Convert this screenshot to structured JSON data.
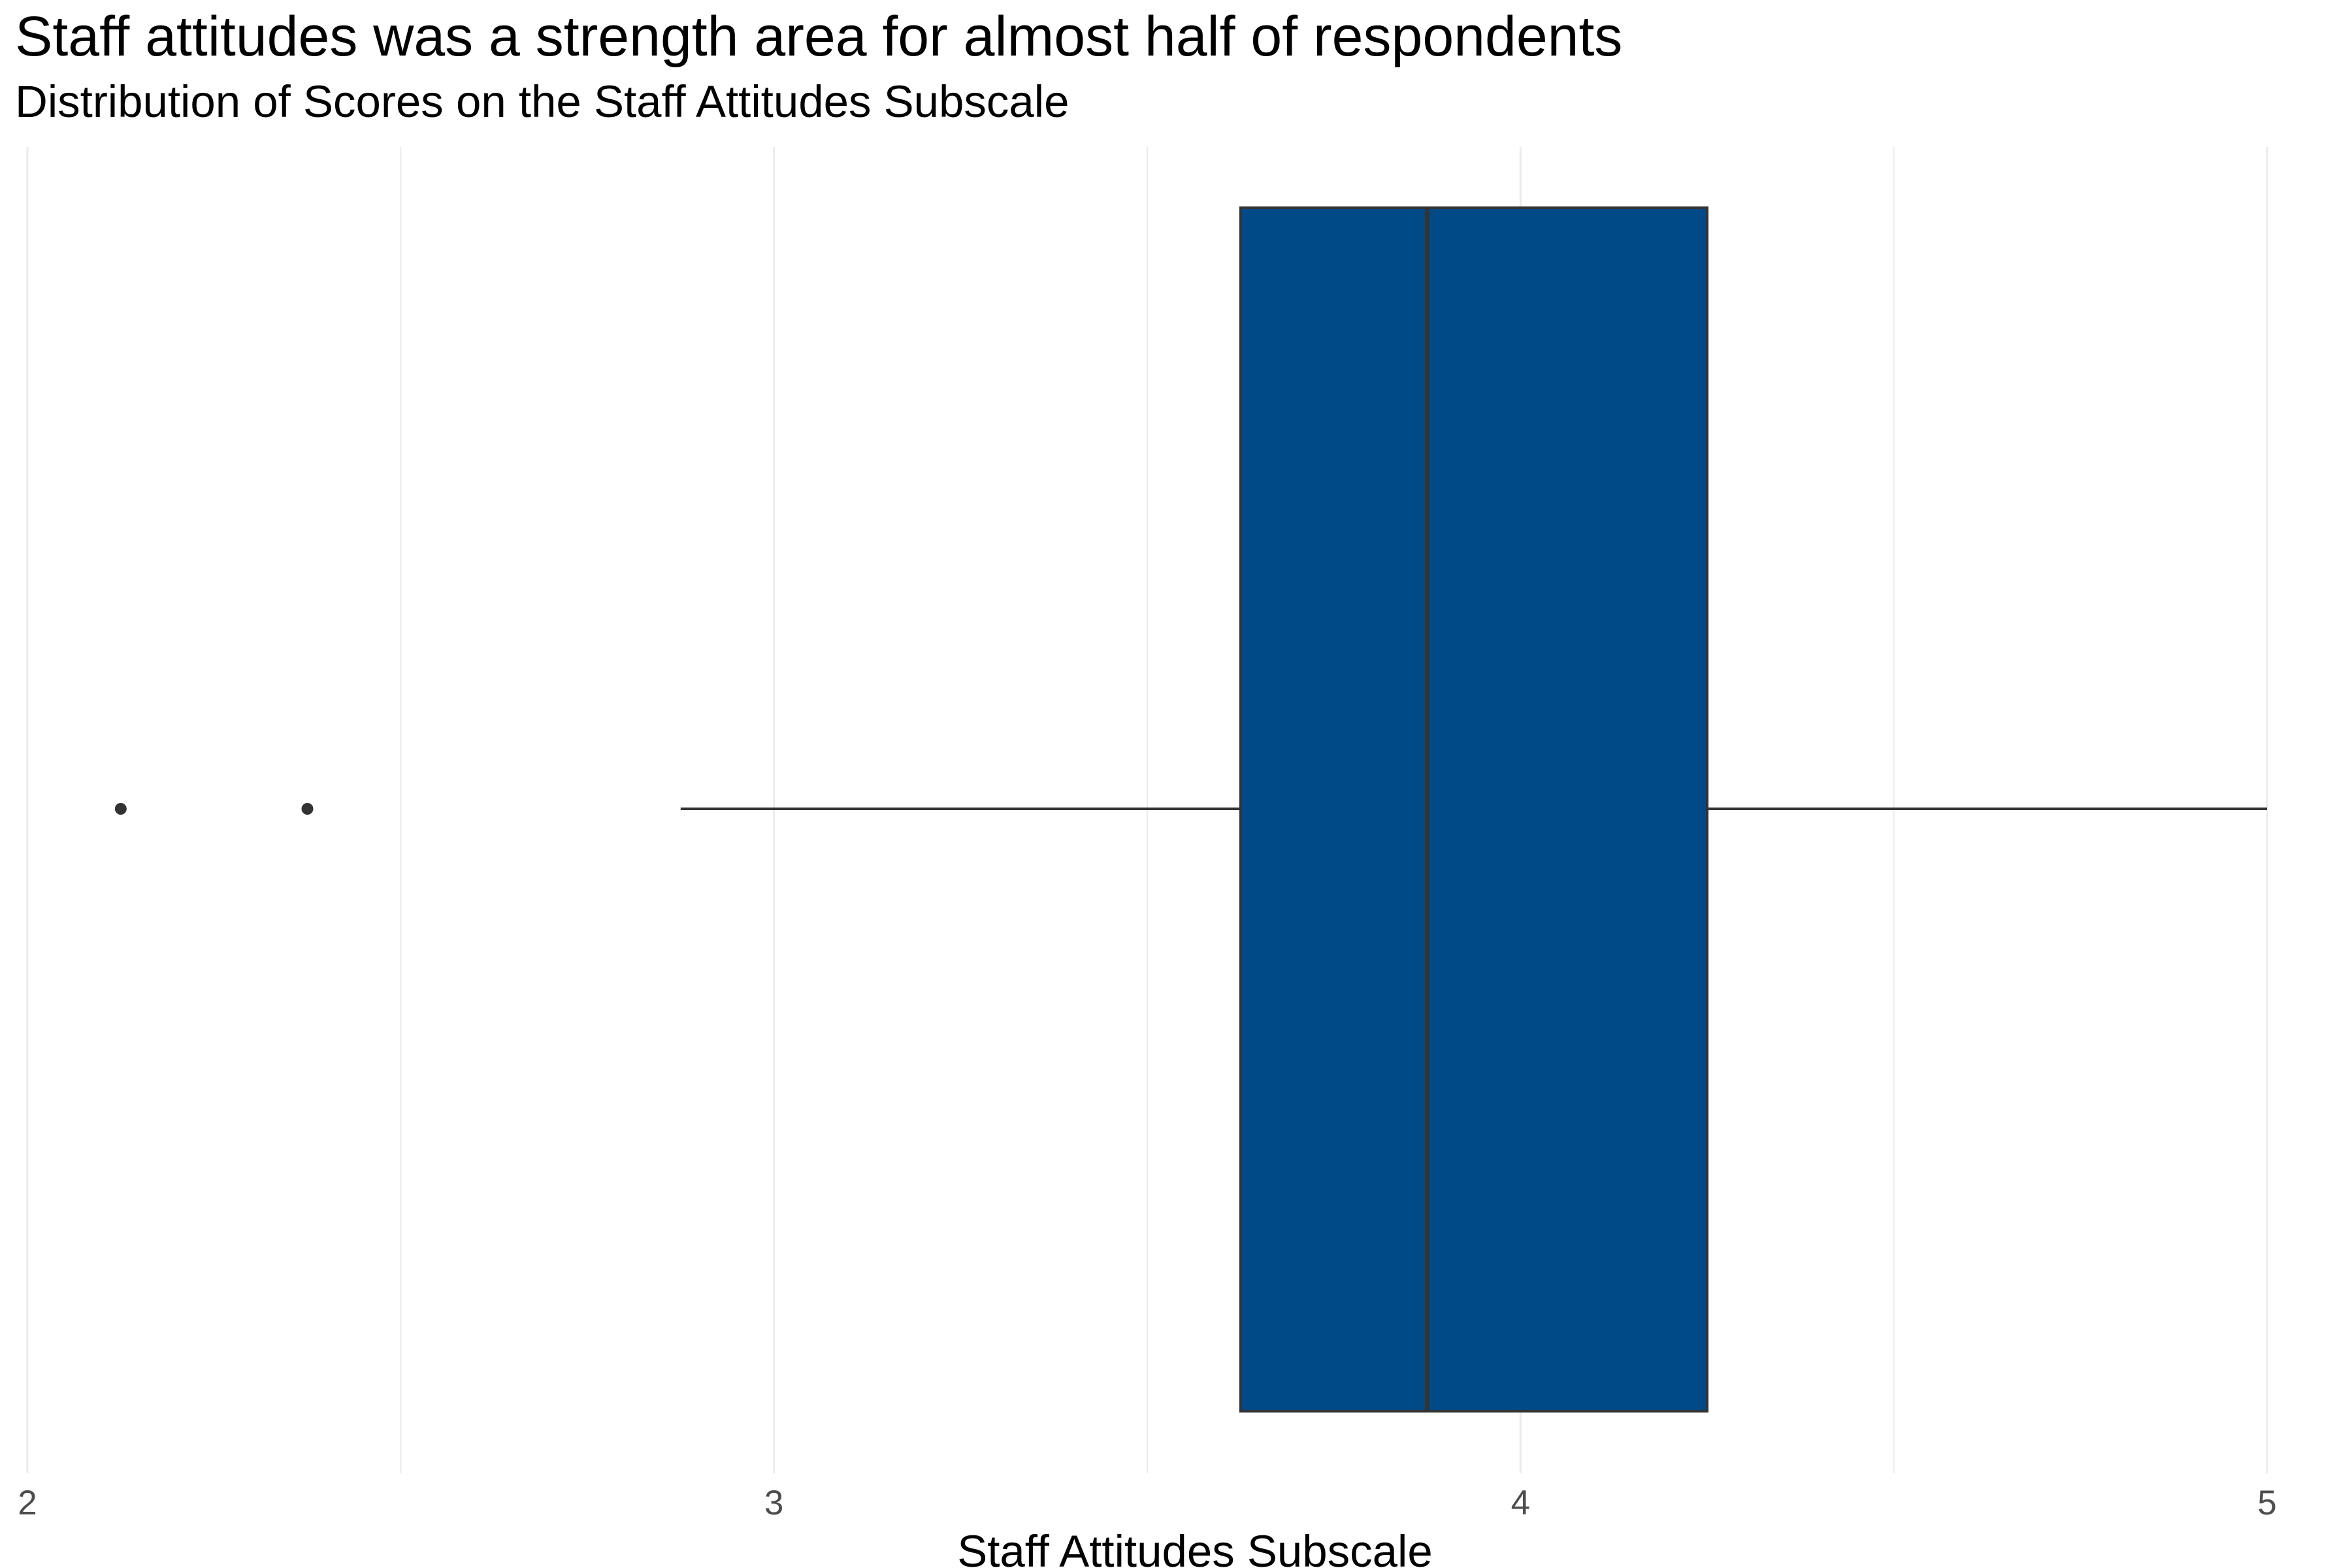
{
  "chart_data": {
    "type": "boxplot",
    "title": "Staff attitudes was a strength area for almost half of respondents",
    "subtitle": "Distribution of Scores on the Staff Attitudes Subscale",
    "xlabel": "Staff Attitudes Subscale",
    "ylabel": "",
    "xlim": [
      2,
      5
    ],
    "x_ticks": [
      2,
      3,
      4,
      5
    ],
    "x_minor_gridlines": [
      2.5,
      3.5,
      4.5
    ],
    "grid": true,
    "legend": "none",
    "box": {
      "q1": 3.625,
      "median": 3.875,
      "q3": 4.25,
      "whisker_low": 2.875,
      "whisker_high": 5.0,
      "outliers": [
        2.125,
        2.375
      ]
    },
    "colors": {
      "box_fill": "#004b87",
      "box_stroke": "#333333",
      "grid": "#ebebeb"
    }
  }
}
